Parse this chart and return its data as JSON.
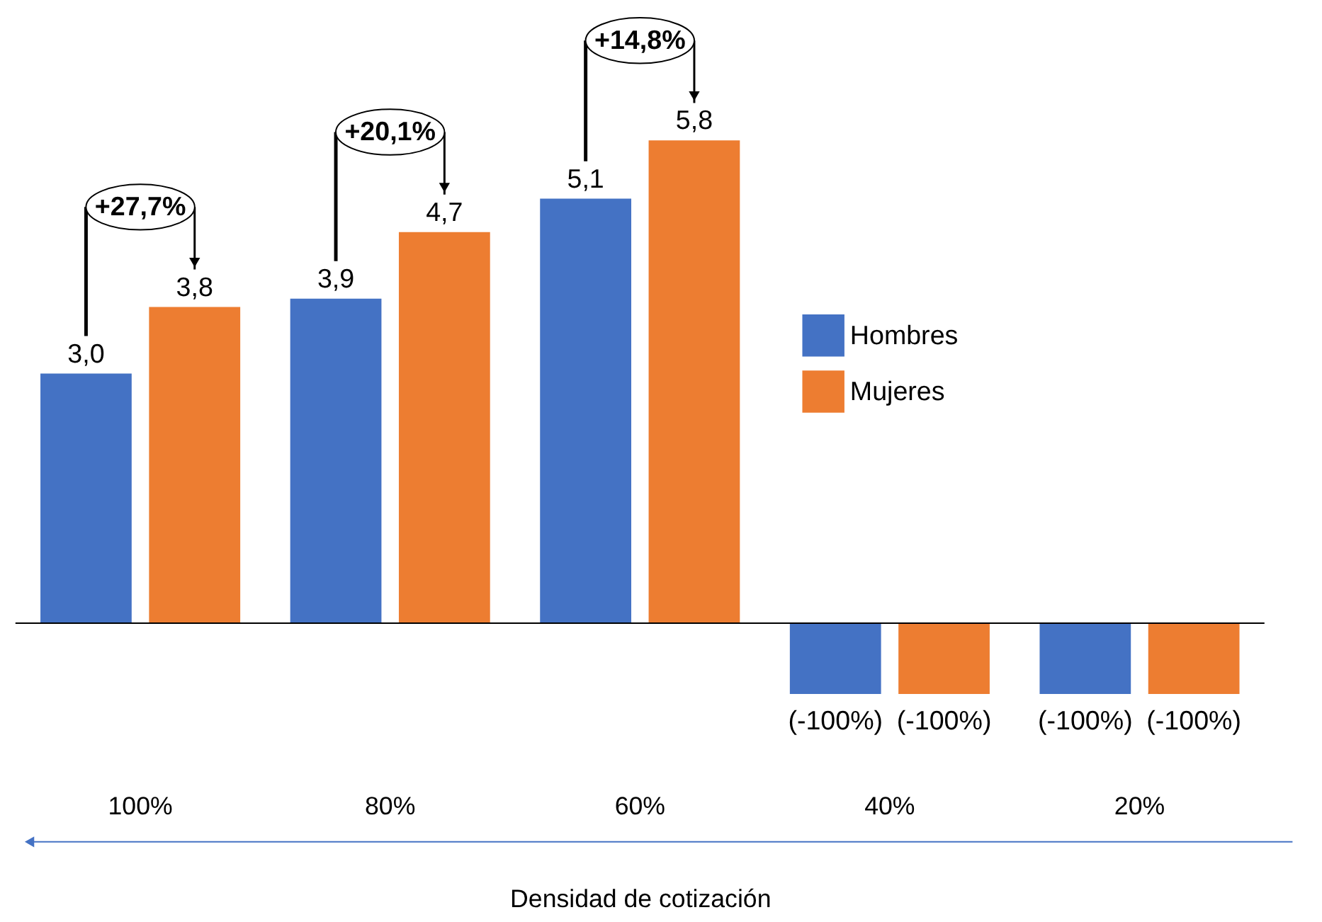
{
  "chart_data": {
    "type": "bar",
    "xlabel": "Densidad de cotización",
    "categories": [
      "100%",
      "80%",
      "60%",
      "40%",
      "20%"
    ],
    "series": [
      {
        "name": "Hombres",
        "color": "#4472c4",
        "values": [
          3.0,
          3.9,
          5.1,
          -0.85,
          -0.85
        ],
        "value_labels": [
          "3,0",
          "3,9",
          "5,1",
          null,
          null
        ]
      },
      {
        "name": "Mujeres",
        "color": "#ed7d31",
        "values": [
          3.8,
          4.7,
          5.8,
          -0.85,
          -0.85
        ],
        "value_labels": [
          "3,8",
          "4,7",
          "5,8",
          null,
          null
        ]
      }
    ],
    "annotations": [
      "+27,7%",
      "+20,1%",
      "+14,8%",
      "(-100%)",
      "(-100%)",
      "(-100%)",
      "(-100%)"
    ],
    "legend": "right"
  }
}
